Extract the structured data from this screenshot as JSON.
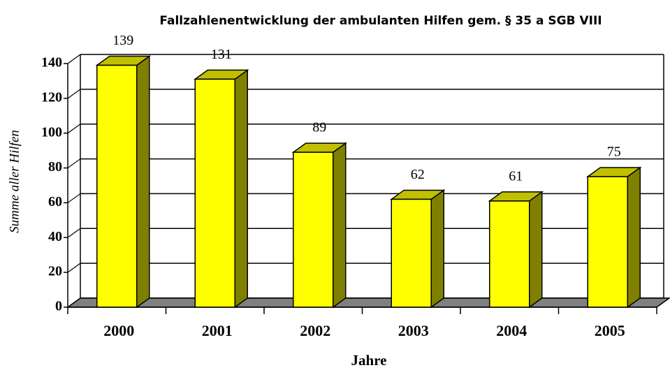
{
  "chart_data": {
    "type": "bar3d",
    "title": "Fallzahlenentwicklung der ambulanten Hilfen gem. § 35 a SGB VIII",
    "categories": [
      "2000",
      "2001",
      "2002",
      "2003",
      "2004",
      "2005"
    ],
    "values": [
      139,
      131,
      89,
      62,
      61,
      75
    ],
    "color": "#ffff00",
    "y_label": "Summe aller Hilfen",
    "x_label": "Jahre",
    "ylim": [
      0,
      140
    ],
    "yticks": [
      0,
      20,
      40,
      60,
      80,
      100,
      120,
      140
    ],
    "grid": true
  }
}
